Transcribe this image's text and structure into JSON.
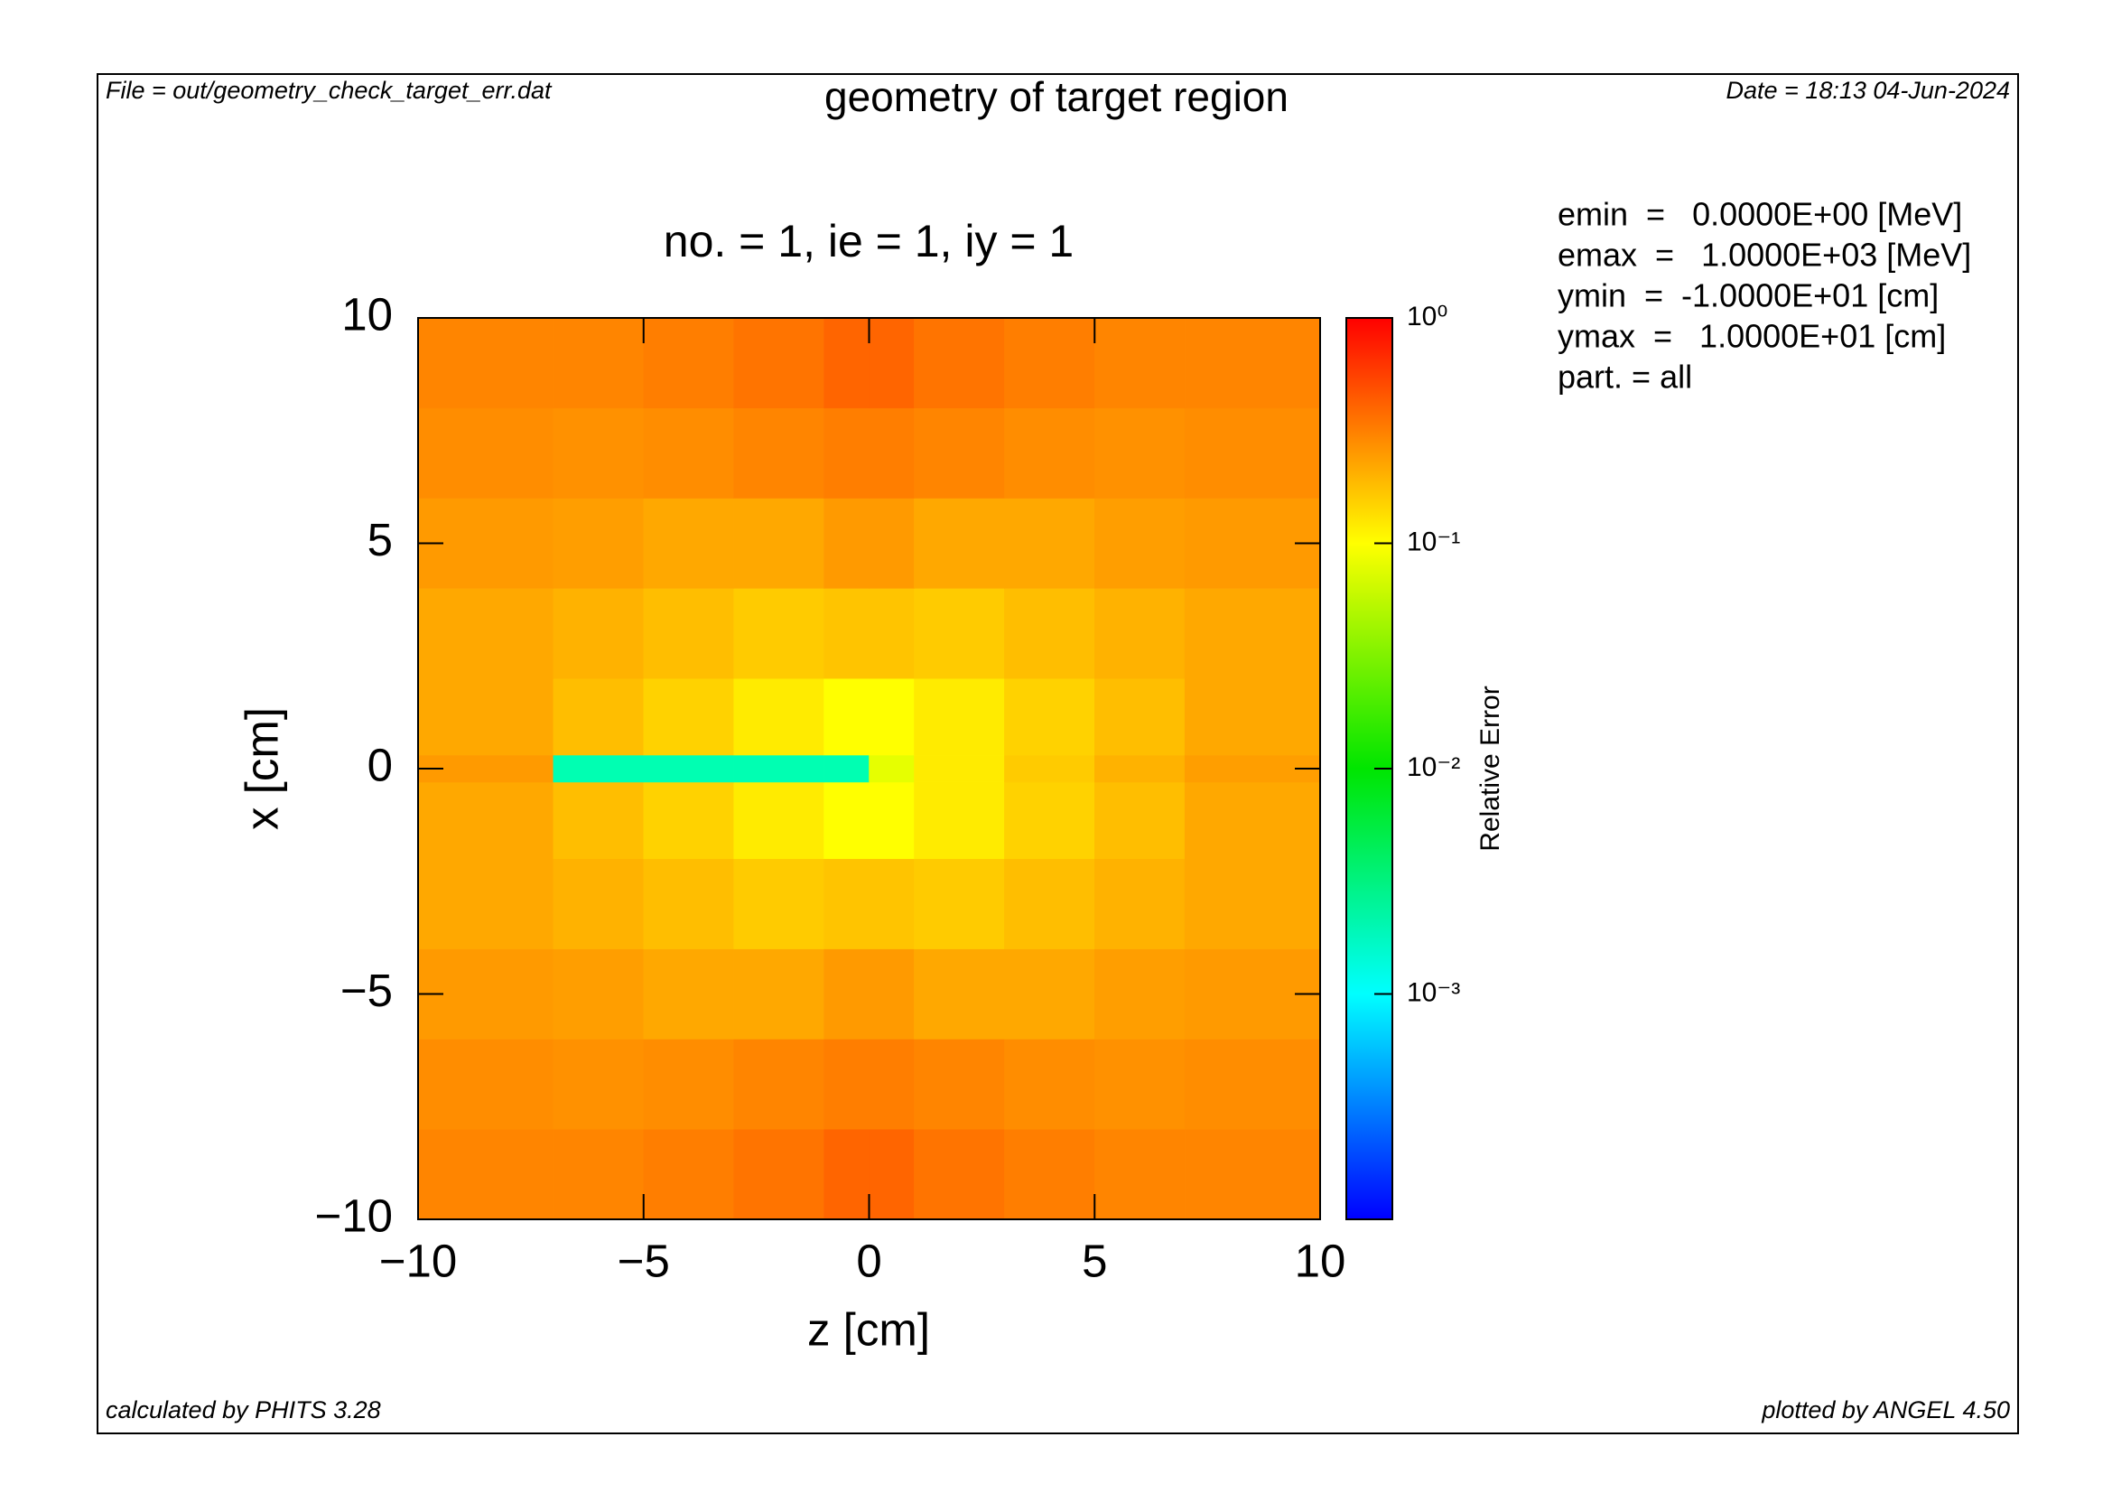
{
  "file_label": "File = out/geometry_check_target_err.dat",
  "date_label": "Date = 18:13 04-Jun-2024",
  "footer_left": "calculated by PHITS 3.28",
  "footer_right": "plotted by ANGEL 4.50",
  "info_lines": [
    "emin  =   0.0000E+00 [MeV]",
    "emax  =   1.0000E+03 [MeV]",
    "ymin  =  -1.0000E+01 [cm]",
    "ymax  =   1.0000E+01 [cm]",
    "part. = all"
  ],
  "chart_data": {
    "type": "heatmap",
    "title": "geometry of target region",
    "subtitle": "no. =  1,  ie =  1,  iy =  1",
    "x_label": "z [cm]",
    "y_label": "x [cm]",
    "colorbar_label": "Relative Error",
    "x_edges": [
      -10,
      -7,
      -5,
      -3,
      -1,
      0,
      1,
      3,
      5,
      7,
      10
    ],
    "y_edges": [
      -10,
      -8,
      -6,
      -4,
      -2,
      -0.3,
      0.3,
      2,
      4,
      6,
      8,
      10
    ],
    "values": [
      [
        0.3,
        0.3,
        0.32,
        0.35,
        0.4,
        0.4,
        0.35,
        0.32,
        0.3,
        0.3
      ],
      [
        0.28,
        0.27,
        0.28,
        0.3,
        0.32,
        0.32,
        0.3,
        0.28,
        0.27,
        0.28
      ],
      [
        0.25,
        0.24,
        0.22,
        0.22,
        0.25,
        0.25,
        0.22,
        0.22,
        0.24,
        0.25
      ],
      [
        0.22,
        0.2,
        0.18,
        0.16,
        0.17,
        0.17,
        0.16,
        0.18,
        0.2,
        0.22
      ],
      [
        0.22,
        0.18,
        0.15,
        0.12,
        0.1,
        0.1,
        0.12,
        0.15,
        0.18,
        0.22
      ],
      [
        0.25,
        0.002,
        0.002,
        0.002,
        0.002,
        0.08,
        0.12,
        0.16,
        0.2,
        0.24
      ],
      [
        0.22,
        0.18,
        0.15,
        0.12,
        0.1,
        0.1,
        0.12,
        0.15,
        0.18,
        0.22
      ],
      [
        0.22,
        0.2,
        0.18,
        0.16,
        0.17,
        0.17,
        0.16,
        0.18,
        0.2,
        0.22
      ],
      [
        0.25,
        0.24,
        0.22,
        0.22,
        0.25,
        0.25,
        0.22,
        0.22,
        0.24,
        0.25
      ],
      [
        0.28,
        0.27,
        0.28,
        0.3,
        0.32,
        0.32,
        0.3,
        0.28,
        0.27,
        0.28
      ],
      [
        0.3,
        0.3,
        0.32,
        0.35,
        0.4,
        0.4,
        0.35,
        0.32,
        0.3,
        0.3
      ]
    ],
    "xlim": [
      -10,
      10
    ],
    "ylim": [
      -10,
      10
    ],
    "xticks": [
      {
        "value": -10,
        "label": "−10"
      },
      {
        "value": -5,
        "label": "−5"
      },
      0,
      5,
      10
    ],
    "yticks": [
      {
        "value": -10,
        "label": "−10"
      },
      {
        "value": -5,
        "label": "−5"
      },
      0,
      5,
      10
    ],
    "clim": [
      0.0001,
      1
    ],
    "color_scale": "log",
    "colormap": "rainbow",
    "cticks": [
      {
        "value": 1,
        "label": "10⁰"
      },
      {
        "value": 0.1,
        "label": "10⁻¹"
      },
      {
        "value": 0.01,
        "label": "10⁻²"
      },
      {
        "value": 0.001,
        "label": "10⁻³"
      }
    ]
  }
}
